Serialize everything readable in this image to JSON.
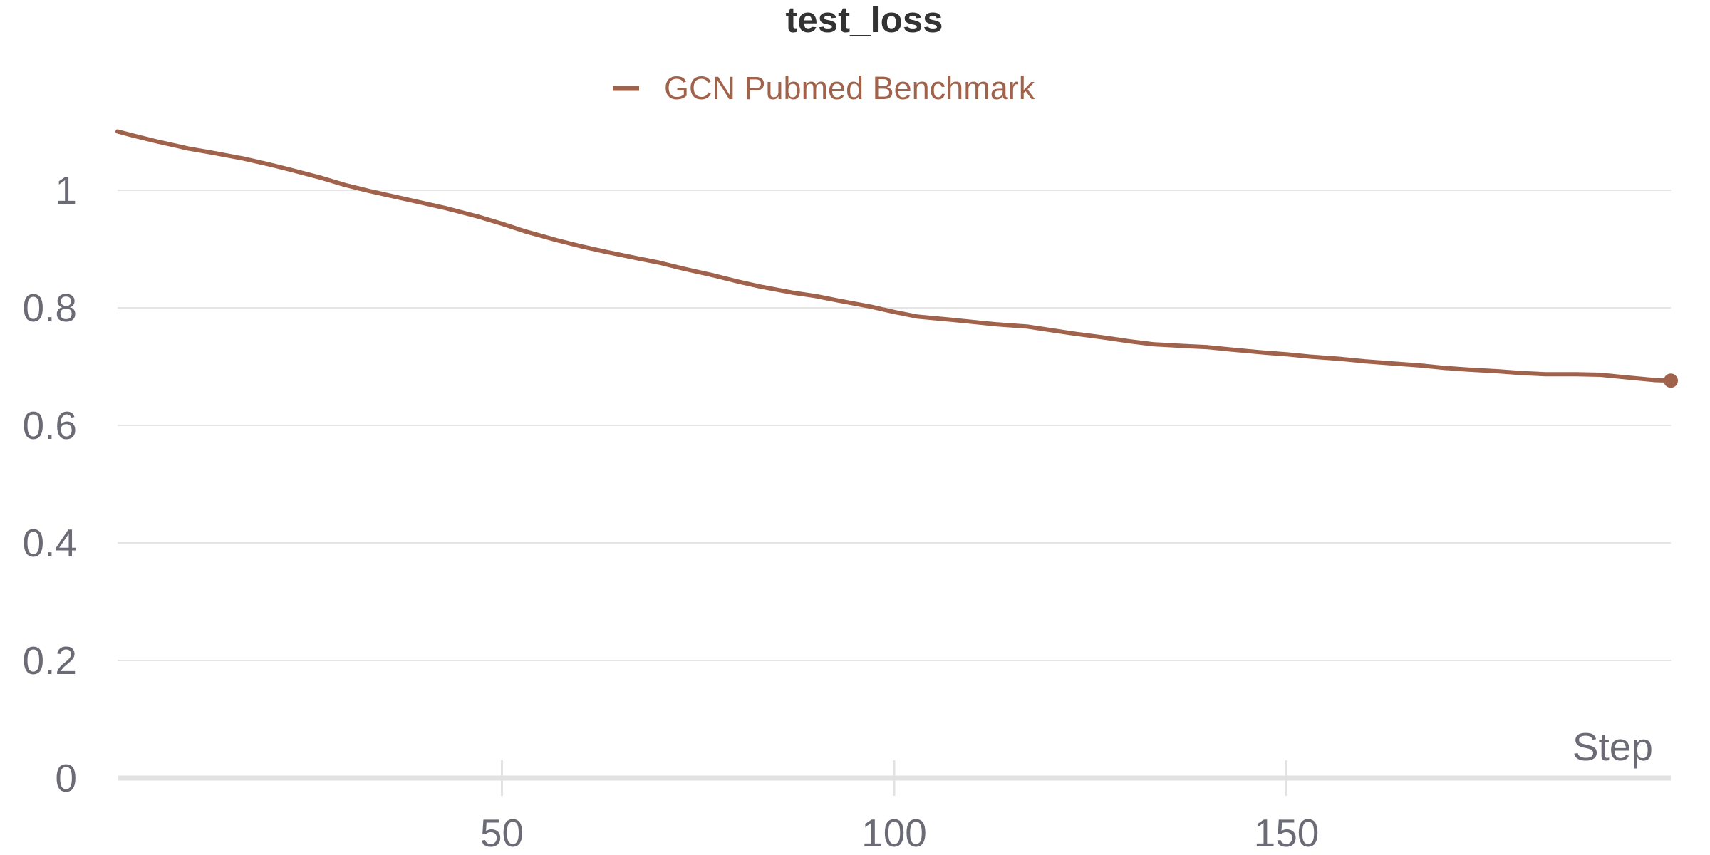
{
  "chart_data": {
    "type": "line",
    "title": "test_loss",
    "xlabel": "Step",
    "ylabel": "",
    "xlim": [
      1,
      199
    ],
    "ylim": [
      0,
      1.1
    ],
    "x_ticks": [
      50,
      100,
      150
    ],
    "x_tick_labels": [
      "50",
      "100",
      "150"
    ],
    "y_ticks": [
      0,
      0.2,
      0.4,
      0.6,
      0.8,
      1
    ],
    "y_tick_labels": [
      "0",
      "0.2",
      "0.4",
      "0.6",
      "0.8",
      "1"
    ],
    "grid": true,
    "legend_position": "top-center",
    "series": [
      {
        "name": "GCN Pubmed Benchmark",
        "color": "#a0624a",
        "end_marker": true,
        "x": [
          1,
          3,
          6,
          10,
          13,
          17,
          20,
          23,
          27,
          30,
          33,
          37,
          40,
          43,
          47,
          50,
          53,
          57,
          60,
          63,
          67,
          70,
          73,
          77,
          80,
          83,
          87,
          90,
          93,
          97,
          100,
          103,
          107,
          110,
          113,
          117,
          120,
          123,
          127,
          130,
          133,
          137,
          140,
          143,
          147,
          150,
          153,
          157,
          160,
          163,
          167,
          170,
          173,
          177,
          180,
          183,
          187,
          190,
          193,
          197,
          199
        ],
        "y": [
          1.1,
          1.093,
          1.083,
          1.071,
          1.064,
          1.054,
          1.045,
          1.035,
          1.021,
          1.009,
          0.999,
          0.987,
          0.978,
          0.969,
          0.955,
          0.943,
          0.93,
          0.915,
          0.905,
          0.896,
          0.885,
          0.877,
          0.867,
          0.855,
          0.845,
          0.836,
          0.826,
          0.82,
          0.812,
          0.802,
          0.793,
          0.785,
          0.78,
          0.776,
          0.772,
          0.768,
          0.762,
          0.756,
          0.749,
          0.743,
          0.738,
          0.735,
          0.733,
          0.729,
          0.724,
          0.721,
          0.717,
          0.713,
          0.709,
          0.706,
          0.702,
          0.698,
          0.695,
          0.692,
          0.689,
          0.687,
          0.687,
          0.686,
          0.682,
          0.677,
          0.676
        ]
      }
    ]
  },
  "colors": {
    "series": "#a0624a",
    "title": "#333333",
    "ticks": "#6b6b76",
    "grid": "#e5e5e5",
    "axis": "#e2e2e2"
  }
}
